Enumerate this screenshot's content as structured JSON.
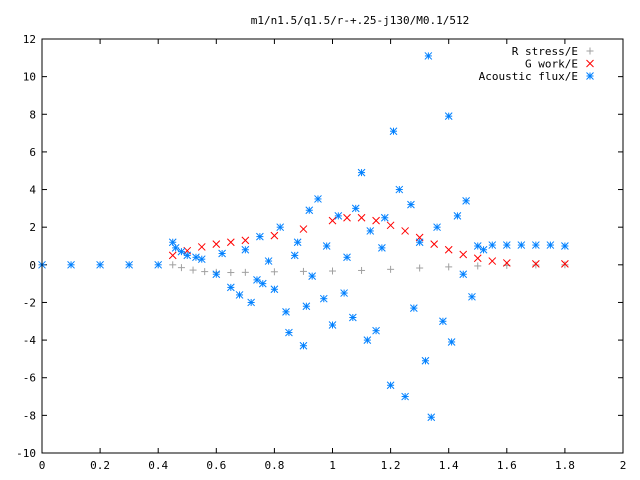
{
  "chart_data": {
    "type": "scatter",
    "title": "m1/n1.5/q1.5/r-+.25-j130/M0.1/512",
    "xlabel": "",
    "ylabel": "",
    "xlim": [
      0,
      2
    ],
    "ylim": [
      -10,
      12
    ],
    "xticks": [
      0,
      0.2,
      0.4,
      0.6,
      0.8,
      1,
      1.2,
      1.4,
      1.6,
      1.8,
      2
    ],
    "xtick_labels": [
      "0",
      "0.2",
      "0.4",
      "0.6",
      "0.8",
      "1",
      "1.2",
      "1.4",
      "1.6",
      "1.8",
      "2"
    ],
    "yticks": [
      -10,
      -8,
      -6,
      -4,
      -2,
      0,
      2,
      4,
      6,
      8,
      10,
      12
    ],
    "ytick_labels": [
      "-10",
      "-8",
      "-6",
      "-4",
      "-2",
      "0",
      "2",
      "4",
      "6",
      "8",
      "10",
      "12"
    ],
    "grid": false,
    "legend": "top-right",
    "series": [
      {
        "name": "R stress/E",
        "marker": "plus",
        "color": "#a0a0a0",
        "x": [
          0.45,
          0.48,
          0.52,
          0.56,
          0.6,
          0.65,
          0.7,
          0.8,
          0.9,
          1.0,
          1.1,
          1.2,
          1.3,
          1.4,
          1.5,
          1.6,
          1.7,
          1.8
        ],
        "y": [
          0.0,
          -0.15,
          -0.28,
          -0.36,
          -0.4,
          -0.41,
          -0.4,
          -0.37,
          -0.35,
          -0.33,
          -0.3,
          -0.24,
          -0.17,
          -0.11,
          -0.06,
          -0.03,
          -0.01,
          0.0
        ]
      },
      {
        "name": "G work/E",
        "marker": "cross",
        "color": "#ff0000",
        "x": [
          0.45,
          0.5,
          0.55,
          0.6,
          0.65,
          0.7,
          0.8,
          0.9,
          1.0,
          1.05,
          1.1,
          1.15,
          1.2,
          1.25,
          1.3,
          1.35,
          1.4,
          1.45,
          1.5,
          1.55,
          1.6,
          1.7,
          1.8
        ],
        "y": [
          0.5,
          0.75,
          0.95,
          1.1,
          1.2,
          1.3,
          1.55,
          1.9,
          2.35,
          2.5,
          2.5,
          2.35,
          2.1,
          1.8,
          1.45,
          1.1,
          0.8,
          0.55,
          0.35,
          0.2,
          0.1,
          0.05,
          0.05
        ]
      },
      {
        "name": "Acoustic flux/E",
        "marker": "star",
        "color": "#0080ff",
        "x": [
          0.0,
          0.1,
          0.2,
          0.3,
          0.4,
          0.45,
          0.46,
          0.48,
          0.5,
          0.53,
          0.55,
          0.6,
          0.62,
          0.65,
          0.68,
          0.7,
          0.72,
          0.74,
          0.75,
          0.76,
          0.78,
          0.8,
          0.82,
          0.84,
          0.85,
          0.87,
          0.88,
          0.9,
          0.91,
          0.92,
          0.93,
          0.95,
          0.97,
          0.98,
          1.0,
          1.02,
          1.04,
          1.05,
          1.07,
          1.08,
          1.1,
          1.12,
          1.13,
          1.15,
          1.17,
          1.18,
          1.2,
          1.21,
          1.23,
          1.25,
          1.27,
          1.28,
          1.3,
          1.32,
          1.33,
          1.34,
          1.36,
          1.38,
          1.4,
          1.41,
          1.43,
          1.45,
          1.46,
          1.48,
          1.5,
          1.52,
          1.55,
          1.6,
          1.65,
          1.7,
          1.75,
          1.8
        ],
        "y": [
          0.0,
          0.0,
          0.0,
          0.0,
          0.0,
          1.2,
          0.9,
          0.7,
          0.5,
          0.4,
          0.3,
          -0.5,
          0.6,
          -1.2,
          -1.6,
          0.8,
          -2.0,
          -0.8,
          1.5,
          -1.0,
          0.2,
          -1.3,
          2.0,
          -2.5,
          -3.6,
          0.5,
          1.2,
          -4.3,
          -2.2,
          2.9,
          -0.6,
          3.5,
          -1.8,
          1.0,
          -3.2,
          2.6,
          -1.5,
          0.4,
          -2.8,
          3.0,
          4.9,
          -4.0,
          1.8,
          -3.5,
          0.9,
          2.5,
          -6.4,
          7.1,
          4.0,
          -7.0,
          3.2,
          -2.3,
          1.2,
          -5.1,
          11.1,
          -8.1,
          2.0,
          -3.0,
          7.9,
          -4.1,
          2.6,
          -0.5,
          3.4,
          -1.7,
          1.0,
          0.8,
          1.05,
          1.05,
          1.05,
          1.05,
          1.05,
          1.0
        ]
      }
    ]
  }
}
